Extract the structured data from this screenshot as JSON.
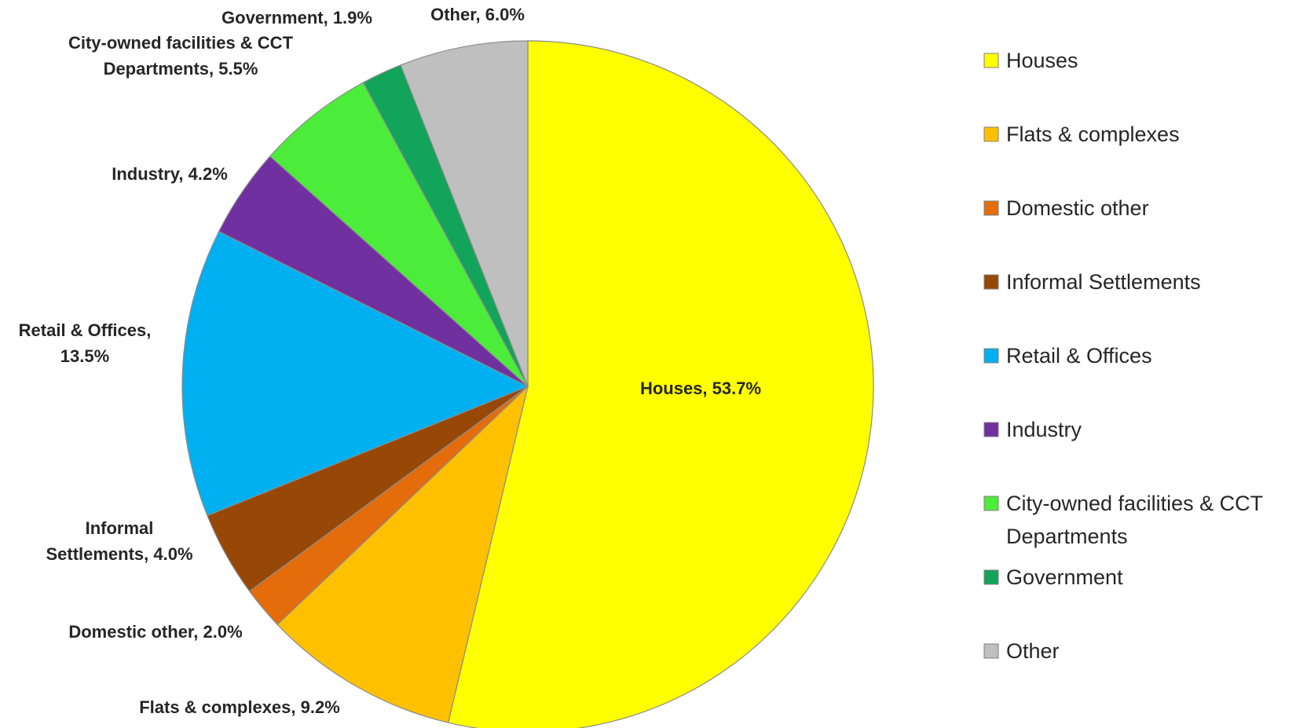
{
  "chart_data": {
    "type": "pie",
    "title": "",
    "start_angle_deg": 0,
    "direction": "clockwise",
    "slices": [
      {
        "label": "Houses",
        "value": 53.7,
        "display": "Houses, 53.7%",
        "color": "#ffff00"
      },
      {
        "label": "Flats & complexes",
        "value": 9.2,
        "display": "Flats & complexes, 9.2%",
        "color": "#ffc000"
      },
      {
        "label": "Domestic other",
        "value": 2.0,
        "display": "Domestic other, 2.0%",
        "color": "#e46c0a"
      },
      {
        "label": "Informal Settlements",
        "value": 4.0,
        "display": "Informal Settlements, 4.0%",
        "color": "#974806"
      },
      {
        "label": "Retail & Offices",
        "value": 13.5,
        "display": "Retail & Offices, 13.5%",
        "color": "#00b0f0"
      },
      {
        "label": "Industry",
        "value": 4.2,
        "display": "Industry, 4.2%",
        "color": "#7030a0"
      },
      {
        "label": "City-owned facilities & CCT Departments",
        "value": 5.5,
        "display": "City-owned facilities & CCT Departments, 5.5%",
        "color": "#4cec3a"
      },
      {
        "label": "Government",
        "value": 1.9,
        "display": "Government, 1.9%",
        "color": "#12a45a"
      },
      {
        "label": "Other",
        "value": 6.0,
        "display": "Other, 6.0%",
        "color": "#bfbfbf"
      }
    ],
    "legend": {
      "placement": "right",
      "entries": [
        "Houses",
        "Flats & complexes",
        "Domestic other",
        "Informal Settlements",
        "Retail & Offices",
        "Industry",
        "City-owned facilities & CCT Departments",
        "Government",
        "Other"
      ]
    }
  }
}
